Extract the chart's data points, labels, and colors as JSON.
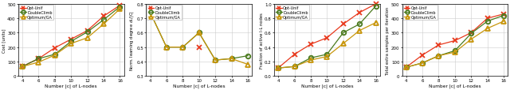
{
  "x": [
    4,
    6,
    8,
    10,
    12,
    14,
    16
  ],
  "plot1": {
    "ylabel": "Cost [units]",
    "xlabel": "Number |c| of L-nodes",
    "ylim": [
      0,
      500
    ],
    "yticks": [
      0,
      100,
      200,
      300,
      400,
      500
    ],
    "opt_unif": [
      65,
      120,
      195,
      255,
      315,
      415,
      490
    ],
    "doubleclimb": [
      65,
      120,
      150,
      240,
      305,
      390,
      480
    ],
    "optimumga": [
      65,
      95,
      145,
      225,
      265,
      360,
      465
    ]
  },
  "plot2": {
    "ylabel": "Norm. learning degree $d_L$/|C|",
    "xlabel": "Number |c| of L-nodes",
    "ylim": [
      0.3,
      0.8
    ],
    "yticks": [
      0.3,
      0.4,
      0.5,
      0.6,
      0.7,
      0.8
    ],
    "opt_unif": [
      null,
      null,
      null,
      0.5,
      null,
      null,
      null
    ],
    "doubleclimb": [
      0.74,
      0.5,
      0.5,
      0.6,
      0.41,
      0.42,
      0.44
    ],
    "optimumga": [
      0.74,
      0.5,
      0.5,
      0.6,
      0.41,
      0.42,
      0.38
    ]
  },
  "plot3": {
    "ylabel": "Fraction of active l-L nodes",
    "xlabel": "Number |c| of L-nodes",
    "ylim": [
      0.0,
      1.0
    ],
    "yticks": [
      0.0,
      0.2,
      0.4,
      0.6,
      0.8,
      1.0
    ],
    "opt_unif": [
      0.11,
      0.3,
      0.44,
      0.53,
      0.72,
      0.88,
      1.0
    ],
    "doubleclimb": [
      0.11,
      0.13,
      0.25,
      0.3,
      0.6,
      0.72,
      0.97
    ],
    "optimumga": [
      0.11,
      0.13,
      0.22,
      0.27,
      0.45,
      0.63,
      0.74
    ]
  },
  "plot4": {
    "ylabel": "Total extra samples per iteration",
    "xlabel": "Number |c| of L-nodes",
    "ylim": [
      0,
      500
    ],
    "yticks": [
      0,
      100,
      200,
      300,
      400,
      500
    ],
    "opt_unif": [
      60,
      145,
      215,
      245,
      300,
      400,
      430
    ],
    "doubleclimb": [
      60,
      90,
      140,
      175,
      295,
      380,
      420
    ],
    "optimumga": [
      60,
      90,
      140,
      165,
      255,
      330,
      380
    ]
  },
  "colors": {
    "opt_unif": "#e8391d",
    "doubleclimb": "#4a7a1e",
    "optimumga": "#c8960c"
  },
  "markers": {
    "opt_unif": "x",
    "doubleclimb": "o",
    "optimumga": "^"
  },
  "legend_labels": [
    "Opt-Unif",
    "DoubleClimb",
    "Optimum/GA"
  ]
}
